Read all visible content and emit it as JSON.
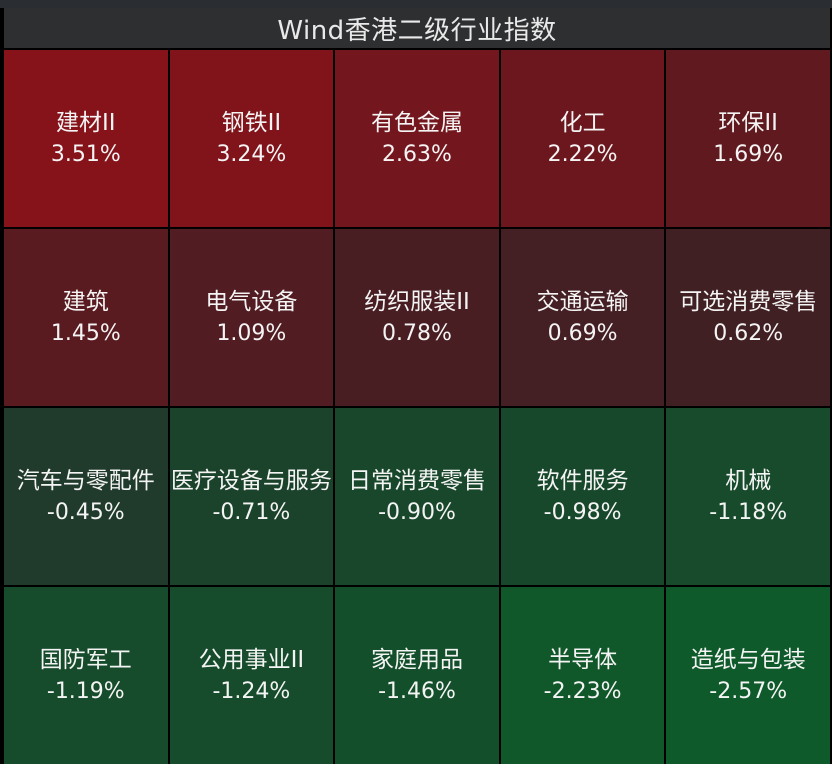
{
  "title": "Wind香港二级行业指数",
  "colors": {
    "up_strong": "#86121a",
    "up_weak": "#402024",
    "down_weak": "#203a2c",
    "down_strong": "#0e5a2a",
    "background": "#000000",
    "header": "#2e2f31",
    "text": "#f4f4f4"
  },
  "chart_data": {
    "type": "heatmap",
    "title": "Wind香港二级行业指数",
    "rows": 4,
    "cols": 5,
    "unit": "%",
    "cells": [
      {
        "name": "建材II",
        "label": "3.51%",
        "value": 3.51
      },
      {
        "name": "钢铁II",
        "label": "3.24%",
        "value": 3.24
      },
      {
        "name": "有色金属",
        "label": "2.63%",
        "value": 2.63
      },
      {
        "name": "化工",
        "label": "2.22%",
        "value": 2.22
      },
      {
        "name": "环保II",
        "label": "1.69%",
        "value": 1.69
      },
      {
        "name": "建筑",
        "label": "1.45%",
        "value": 1.45
      },
      {
        "name": "电气设备",
        "label": "1.09%",
        "value": 1.09
      },
      {
        "name": "纺织服装II",
        "label": "0.78%",
        "value": 0.78
      },
      {
        "name": "交通运输",
        "label": "0.69%",
        "value": 0.69
      },
      {
        "name": "可选消费零售",
        "label": "0.62%",
        "value": 0.62
      },
      {
        "name": "汽车与零配件",
        "label": "-0.45%",
        "value": -0.45
      },
      {
        "name": "医疗设备与服务",
        "label": "-0.71%",
        "value": -0.71
      },
      {
        "name": "日常消费零售",
        "label": "-0.90%",
        "value": -0.9
      },
      {
        "name": "软件服务",
        "label": "-0.98%",
        "value": -0.98
      },
      {
        "name": "机械",
        "label": "-1.18%",
        "value": -1.18
      },
      {
        "name": "国防军工",
        "label": "-1.19%",
        "value": -1.19
      },
      {
        "name": "公用事业II",
        "label": "-1.24%",
        "value": -1.24
      },
      {
        "name": "家庭用品",
        "label": "-1.46%",
        "value": -1.46
      },
      {
        "name": "半导体",
        "label": "-2.23%",
        "value": -2.23
      },
      {
        "name": "造纸与包装",
        "label": "-2.57%",
        "value": -2.57
      }
    ]
  }
}
